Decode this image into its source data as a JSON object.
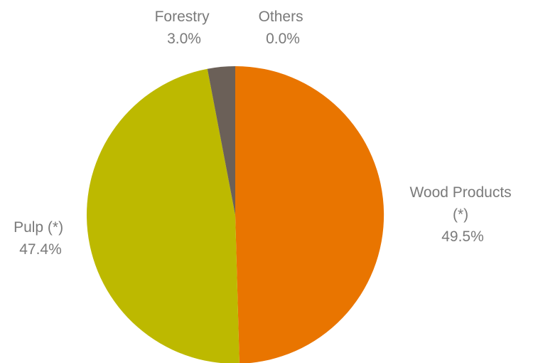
{
  "chart_data": {
    "type": "pie",
    "slices": [
      {
        "label_lines": [
          "Wood Products",
          "(*)"
        ],
        "value": 49.5,
        "value_label": "49.5%",
        "color": "#E97500"
      },
      {
        "label_lines": [
          "Pulp (*)"
        ],
        "value": 47.4,
        "value_label": "47.4%",
        "color": "#BDB900"
      },
      {
        "label_lines": [
          "Forestry"
        ],
        "value": 3.0,
        "value_label": "3.0%",
        "color": "#6B6058"
      },
      {
        "label_lines": [
          "Others"
        ],
        "value": 0.0,
        "value_label": "0.0%",
        "color": "#A69A8E"
      }
    ],
    "start": "12 o'clock",
    "direction": "clockwise",
    "legend": "none",
    "label_color": "#7A7A7A"
  }
}
